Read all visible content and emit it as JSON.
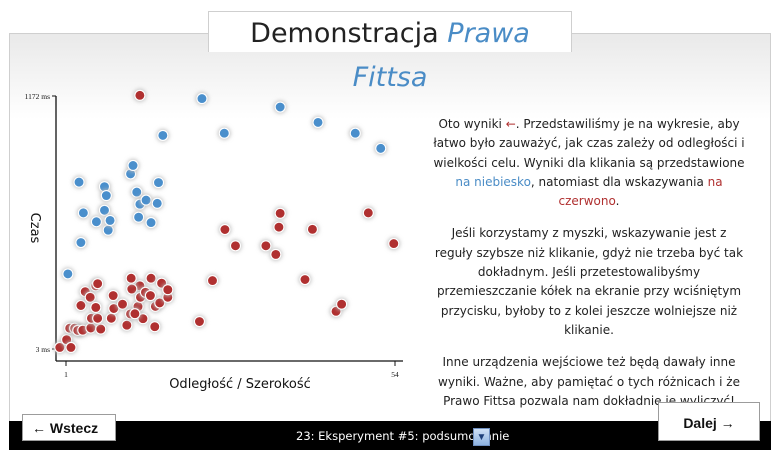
{
  "title": {
    "main": "Demonstracja",
    "accent": "Prawa Fittsa"
  },
  "chart_data": {
    "type": "scatter",
    "xlabel": "Odległość / Szerokość",
    "ylabel": "Czas",
    "x_ticks": [
      "1",
      "54"
    ],
    "y_ticks": [
      "3 ms",
      "1172 ms"
    ],
    "xlim": [
      1,
      54
    ],
    "ylim": [
      3,
      1172
    ],
    "grid": false,
    "series": [
      {
        "color": "#4a8fcc",
        "points": [
          [
            1.3,
            350
          ],
          [
            3.1,
            774
          ],
          [
            3.4,
            495
          ],
          [
            3.8,
            632
          ],
          [
            5.9,
            591
          ],
          [
            7.2,
            644
          ],
          [
            7.2,
            753
          ],
          [
            7.5,
            712
          ],
          [
            7.8,
            552
          ],
          [
            8.1,
            597
          ],
          [
            11.4,
            812
          ],
          [
            11.8,
            851
          ],
          [
            12.4,
            728
          ],
          [
            12.9,
            672
          ],
          [
            12.7,
            612
          ],
          [
            13.9,
            691
          ],
          [
            14.7,
            587
          ],
          [
            15.7,
            676
          ],
          [
            15.9,
            772
          ],
          [
            16.6,
            990
          ],
          [
            22.9,
            1160
          ],
          [
            26.5,
            1000
          ],
          [
            35.5,
            1121
          ],
          [
            41.6,
            1050
          ],
          [
            47.6,
            1000
          ],
          [
            51.7,
            930
          ]
        ]
      },
      {
        "color": "#b03030",
        "points": [
          [
            0,
            10
          ],
          [
            1.1,
            46
          ],
          [
            1.8,
            10
          ],
          [
            1.6,
            99
          ],
          [
            2.4,
            99
          ],
          [
            3.1,
            89
          ],
          [
            2.9,
            89
          ],
          [
            3.7,
            90
          ],
          [
            5.0,
            100
          ],
          [
            6.6,
            95
          ],
          [
            5.1,
            145
          ],
          [
            6.1,
            145
          ],
          [
            8.3,
            145
          ],
          [
            10.8,
            113
          ],
          [
            3.4,
            204
          ],
          [
            4.1,
            268
          ],
          [
            4.9,
            242
          ],
          [
            5.8,
            295
          ],
          [
            6.1,
            305
          ],
          [
            5.8,
            195
          ],
          [
            8.7,
            190
          ],
          [
            10.1,
            210
          ],
          [
            11.4,
            165
          ],
          [
            12.6,
            199
          ],
          [
            12.9,
            295
          ],
          [
            15.4,
            200
          ],
          [
            16.1,
            216
          ],
          [
            8.6,
            250
          ],
          [
            11.6,
            280
          ],
          [
            11.5,
            330
          ],
          [
            13.0,
            242
          ],
          [
            13.8,
            265
          ],
          [
            14.6,
            250
          ],
          [
            14.7,
            330
          ],
          [
            16.4,
            307
          ],
          [
            17.4,
            242
          ],
          [
            17.4,
            277
          ],
          [
            15.3,
            106
          ],
          [
            13.4,
            143
          ],
          [
            12.1,
            166
          ],
          [
            22.5,
            130
          ],
          [
            24.6,
            319
          ],
          [
            26.6,
            555
          ],
          [
            28.3,
            480
          ],
          [
            33.2,
            480
          ],
          [
            34.8,
            440
          ],
          [
            35.3,
            566
          ],
          [
            35.5,
            630
          ],
          [
            39.5,
            324
          ],
          [
            40.7,
            556
          ],
          [
            44.5,
            177
          ],
          [
            45.4,
            210
          ],
          [
            53.8,
            490
          ],
          [
            49.7,
            632
          ],
          [
            12.9,
            1175
          ]
        ]
      }
    ]
  },
  "description": {
    "p1_a": "Oto wyniki",
    "p1_b": ". Przedstawiliśmy je na wykresie, aby łatwo było zauważyć, jak czas zależy od odległości i wielkości celu. Wyniki dla klikania są przedstawione",
    "p1_blue": "na niebiesko",
    "p1_c": ", natomiast dla wskazywania",
    "p1_red": "na czerwono",
    "p1_d": ".",
    "p2": "Jeśli korzystamy z myszki, wskazywanie jest z reguły szybsze niż klikanie, gdyż nie trzeba być tak dokładnym. Jeśli przetestowalibyśmy przemieszczanie kółek na ekranie przy wciśniętym przycisku, byłoby to z kolei jeszcze wolniejsze niż klikanie.",
    "p3": "Inne urządzenia wejściowe też będą dawały inne wyniki. Ważne, aby pamiętać o tych różnicach i że Prawo Fittsa pozwala nam dokładnie je wyliczyć!"
  },
  "nav": {
    "back_label": "← Wstecz",
    "next_label": "Dalej →",
    "slide_label": "23: Eksperyment #5: podsumowanie"
  }
}
